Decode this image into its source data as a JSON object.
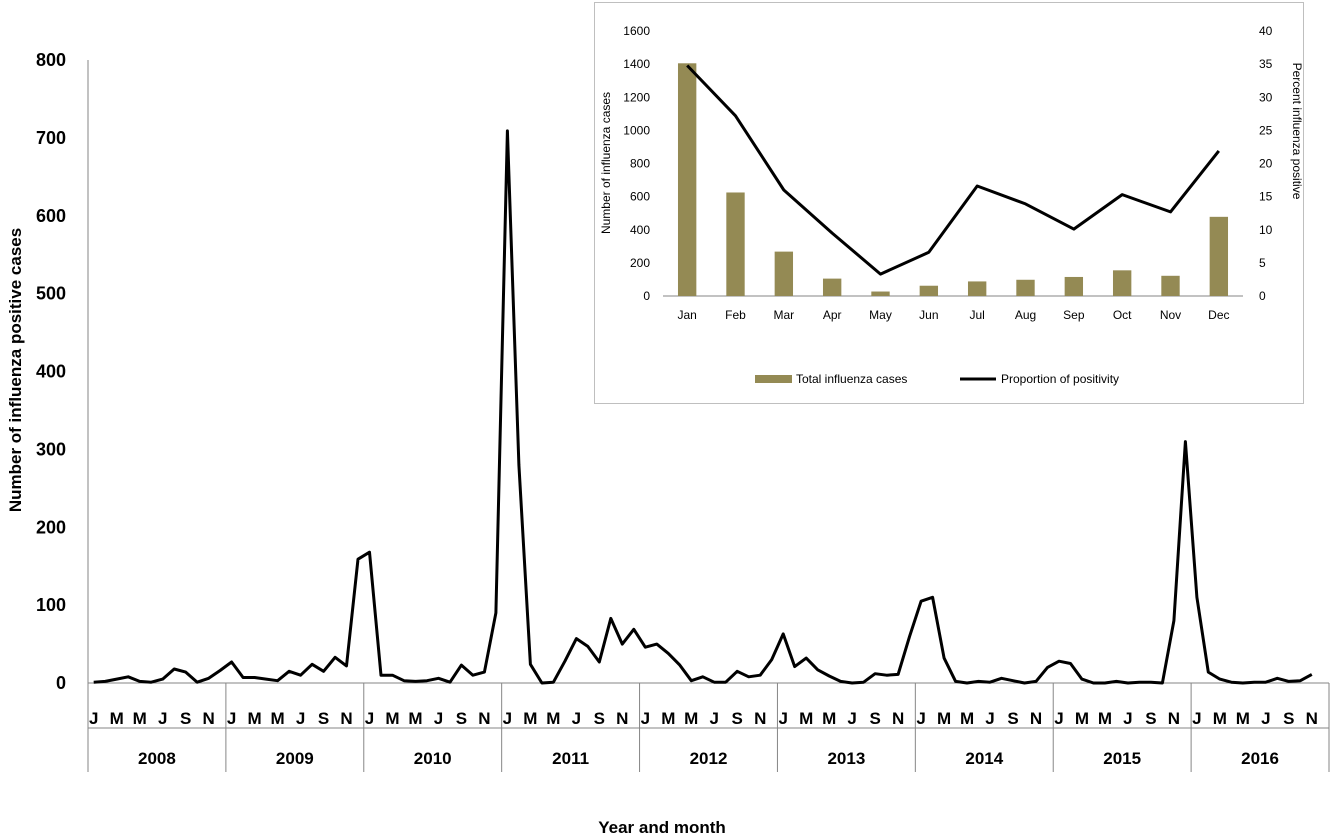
{
  "chart_data": [
    {
      "type": "line",
      "title": "",
      "ylabel": "Number of influenza positive cases",
      "xlabel": "Year and month",
      "ylim": [
        0,
        800
      ],
      "yticks": [
        0,
        100,
        200,
        300,
        400,
        500,
        600,
        700,
        800
      ],
      "years": [
        "2008",
        "2009",
        "2010",
        "2011",
        "2012",
        "2013",
        "2014",
        "2015",
        "2016"
      ],
      "month_tick_labels": [
        "J",
        "M",
        "M",
        "J",
        "S",
        "N"
      ],
      "grid": false,
      "series": [
        {
          "values": [
            1,
            2,
            5,
            8,
            2,
            1,
            5,
            18,
            14,
            1,
            6,
            16,
            27,
            7,
            7,
            5,
            3,
            15,
            10,
            24,
            15,
            33,
            22,
            159,
            168,
            10,
            10,
            3,
            2,
            3,
            6,
            1,
            23,
            10,
            14,
            90,
            709,
            280,
            24,
            0,
            1,
            28,
            57,
            47,
            27,
            83,
            50,
            69,
            46,
            50,
            38,
            23,
            3,
            8,
            1,
            1,
            15,
            8,
            10,
            30,
            63,
            21,
            32,
            17,
            9,
            2,
            0,
            1,
            12,
            10,
            11,
            60,
            105,
            110,
            32,
            2,
            0,
            2,
            1,
            6,
            3,
            0,
            2,
            20,
            28,
            25,
            5,
            0,
            0,
            2,
            0,
            1,
            1,
            0,
            80,
            310,
            110,
            14,
            5,
            1,
            0,
            1,
            1,
            6,
            2,
            3,
            11
          ]
        }
      ]
    },
    {
      "type": "bar+line",
      "title": "",
      "categories": [
        "Jan",
        "Feb",
        "Mar",
        "Apr",
        "May",
        "Jun",
        "Jul",
        "Aug",
        "Sep",
        "Oct",
        "Nov",
        "Dec"
      ],
      "ylabel": "Number of influenza cases",
      "y2label": "Percent influenza positive",
      "ylim": [
        0,
        1600
      ],
      "yticks": [
        0,
        200,
        400,
        600,
        800,
        1000,
        1200,
        1400,
        1600
      ],
      "y2lim": [
        0,
        40
      ],
      "y2ticks": [
        0,
        5,
        10,
        15,
        20,
        25,
        30,
        35,
        40
      ],
      "legend_position": "bottom",
      "grid": false,
      "series": [
        {
          "name": "Total influenza cases",
          "type": "bar",
          "axis": "left",
          "color": "#948a54",
          "values": [
            1405,
            625,
            268,
            105,
            27,
            62,
            88,
            98,
            115,
            155,
            122,
            478
          ]
        },
        {
          "name": "Proportion of positivity",
          "type": "line",
          "axis": "right",
          "color": "#000000",
          "values": [
            34.8,
            27.2,
            16.0,
            9.5,
            3.3,
            6.6,
            16.6,
            13.9,
            10.1,
            15.3,
            12.7,
            21.9
          ]
        }
      ]
    }
  ]
}
